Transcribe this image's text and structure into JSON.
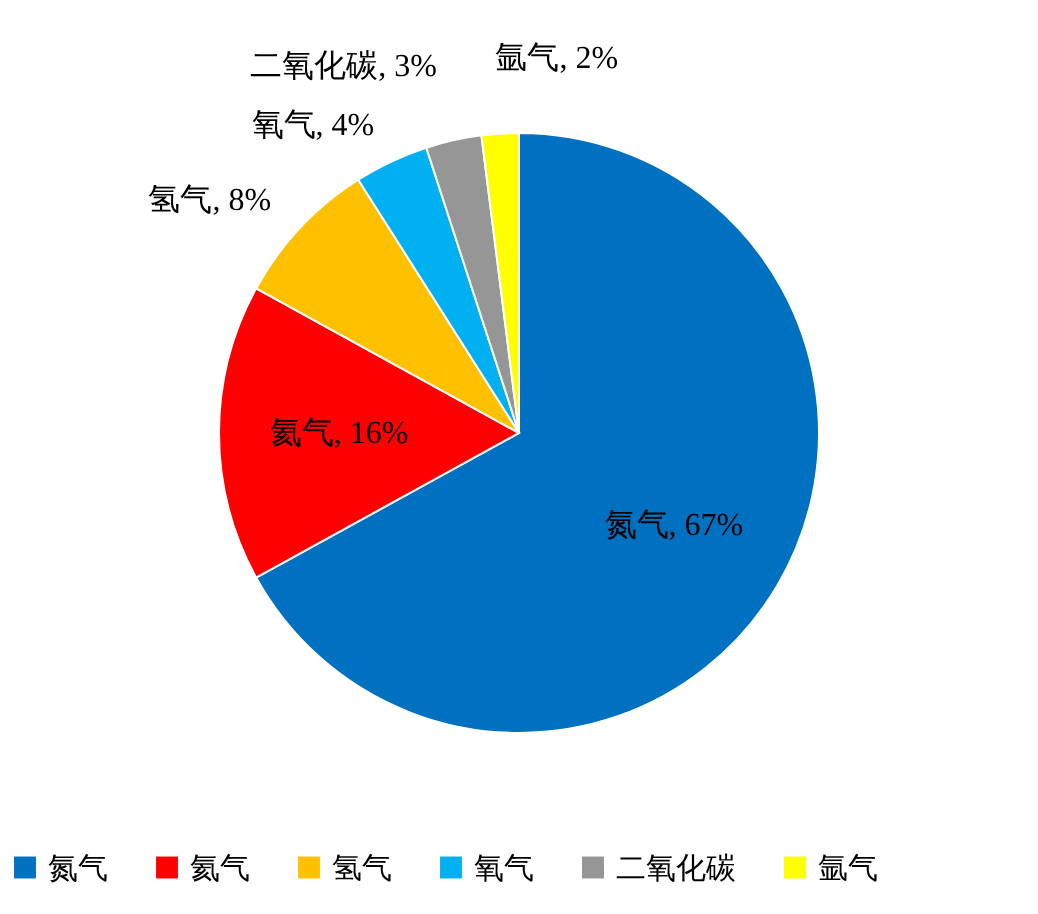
{
  "chart_data": {
    "type": "pie",
    "categories": [
      "氮气",
      "氦气",
      "氢气",
      "氧气",
      "二氧化碳",
      "氩气"
    ],
    "values": [
      67,
      16,
      8,
      4,
      3,
      2
    ],
    "colors": [
      "#0070c0",
      "#ff0000",
      "#ffc000",
      "#00b0f0",
      "#969696",
      "#ffff00"
    ],
    "value_labels": [
      "氮气, 67%",
      "氦气, 16%",
      "氢气, 8%",
      "氧气, 4%",
      "二氧化碳, 3%",
      "氩气, 2%"
    ],
    "legend": "bottom"
  }
}
